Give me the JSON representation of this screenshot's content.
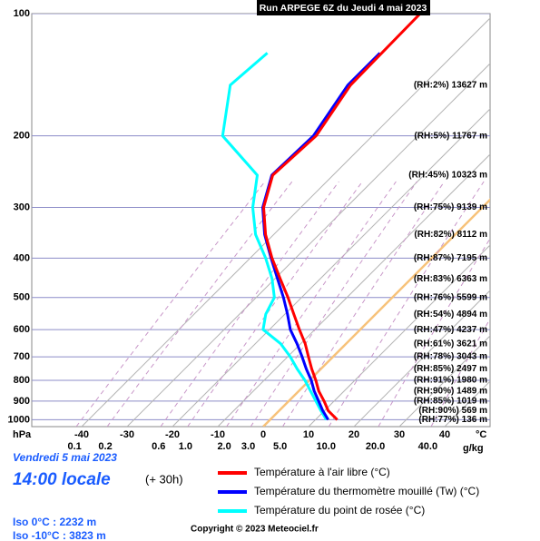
{
  "chart_data": {
    "type": "skewt",
    "title": "Run ARPEGE 6Z du Jeudi 4 mai 2023",
    "y_label": "hPa",
    "x_label": "°C",
    "mix_label": "g/kg",
    "log_y": true,
    "grid": true,
    "freezing_color": "#f7c27a",
    "pressure": [
      1000,
      950,
      900,
      850,
      800,
      750,
      700,
      650,
      600,
      550,
      500,
      450,
      400,
      350,
      300,
      250,
      200,
      150,
      125,
      100
    ],
    "ylim": [
      1040,
      100
    ],
    "yticks": [
      100,
      200,
      300,
      400,
      500,
      600,
      700,
      800,
      900,
      1000
    ],
    "xlim": [
      -51,
      50
    ],
    "xticks": [
      -40,
      -30,
      -20,
      -10,
      0,
      10,
      20,
      30,
      40
    ],
    "mixing_ratio_ticks": [
      0.1,
      0.2,
      0.6,
      {
        "value": 1,
        "label": "1.0"
      },
      {
        "value": 2,
        "label": "2.0"
      },
      {
        "value": 3,
        "label": "3.0"
      },
      {
        "value": 5,
        "label": "5.0"
      },
      {
        "value": 10,
        "label": "10.0"
      },
      {
        "value": 20,
        "label": "20.0"
      },
      {
        "value": 40,
        "label": "40.0"
      }
    ],
    "series": [
      {
        "name": "Température à l'air libre (°C)",
        "color": "#ff0000",
        "values": [
          14.8,
          10.8,
          7.8,
          4.4,
          1.4,
          -2,
          -5.4,
          -9,
          -13.4,
          -18,
          -23,
          -28.8,
          -35.2,
          -41.8,
          -48.2,
          -53.3,
          -52.4,
          -56,
          -56.2,
          -56.4
        ]
      },
      {
        "name": "Température du thermomètre mouillé (Tw) (°C)",
        "color": "#0000ff",
        "values": [
          12.8,
          9.6,
          6.6,
          3.4,
          0.4,
          -3.2,
          -6.8,
          -10.8,
          -15.4,
          -19.4,
          -24,
          -29.4,
          -35.4,
          -42,
          -48.4,
          -53.5,
          -53,
          -56.6,
          -56.6,
          null
        ]
      },
      {
        "name": "Température du point de rosée (°C)",
        "color": "#00ffff",
        "values": [
          12.4,
          9.2,
          6,
          2.6,
          -1,
          -5.2,
          -9.4,
          -14.4,
          -21.4,
          -24.2,
          -26,
          -30.6,
          -36.6,
          -44,
          -50.6,
          -56.7,
          -73,
          -82.5,
          -81.4,
          null
        ]
      }
    ],
    "level_labels": [
      "(RH:77%) 136 m",
      "(RH:90%) 569 m",
      "(RH:85%) 1019 m",
      "(RH:90%) 1489 m",
      "(RH:91%) 1980 m",
      "(RH:85%) 2497 m",
      "(RH:78%) 3043 m",
      "(RH:61%) 3621 m",
      "(RH:47%) 4237 m",
      "(RH:54%) 4894 m",
      "(RH:76%) 5599 m",
      "(RH:83%) 6363 m",
      "(RH:87%) 7195 m",
      "(RH:82%) 8112 m",
      "(RH:75%) 9139 m",
      "(RH:45%) 10323 m",
      "(RH:5%) 11767 m",
      "(RH:2%) 13627 m",
      null,
      null
    ]
  },
  "info": {
    "date": "Vendredi 5 mai 2023",
    "time": "14:00 locale",
    "lead": "(+ 30h)",
    "iso0": "Iso 0°C : 2232 m",
    "iso10": "Iso -10°C : 3823 m",
    "copyright": "Copyright © 2023 Meteociel.fr"
  }
}
